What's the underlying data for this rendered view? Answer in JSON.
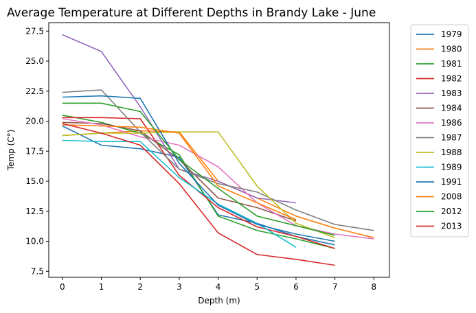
{
  "chart_data": {
    "type": "line",
    "title": "Average Temperature at Different Depths in Brandy Lake - June",
    "xlabel": "Depth (m)",
    "ylabel": "Temp (C°)",
    "xlim": [
      -0.35,
      8.4
    ],
    "ylim": [
      7.0,
      28.2
    ],
    "xticks": [
      0,
      1,
      2,
      3,
      4,
      5,
      6,
      7,
      8
    ],
    "yticks": [
      7.5,
      10.0,
      12.5,
      15.0,
      17.5,
      20.0,
      22.5,
      25.0,
      27.5
    ],
    "ytick_labels": [
      "7.5",
      "10.0",
      "12.5",
      "15.0",
      "17.5",
      "20.0",
      "22.5",
      "25.0",
      "27.5"
    ],
    "grid": false,
    "legend_position": "right-outside",
    "series": [
      {
        "name": "1979",
        "color": "#1f77b4",
        "x": [
          0,
          1,
          2,
          3,
          4,
          5,
          6,
          7
        ],
        "y": [
          19.6,
          18.0,
          17.7,
          17.0,
          12.2,
          11.5,
          10.4,
          9.7
        ]
      },
      {
        "name": "1980",
        "color": "#ff7f0e",
        "x": [
          0,
          1,
          2,
          3,
          4,
          5,
          6,
          7,
          8
        ],
        "y": [
          18.8,
          19.0,
          19.2,
          19.1,
          15.0,
          13.6,
          12.1,
          11.1,
          10.3
        ]
      },
      {
        "name": "1981",
        "color": "#2ca02c",
        "x": [
          0,
          1,
          2,
          3,
          4,
          5,
          6,
          7
        ],
        "y": [
          20.5,
          19.9,
          19.0,
          17.2,
          12.1,
          10.9,
          10.2,
          9.4
        ]
      },
      {
        "name": "1982",
        "color": "#d62728",
        "x": [
          0,
          1,
          2,
          3,
          4,
          5,
          6,
          7
        ],
        "y": [
          20.3,
          20.3,
          20.2,
          15.5,
          12.8,
          11.2,
          10.4,
          9.4
        ]
      },
      {
        "name": "1983",
        "color": "#9467bd",
        "x": [
          0,
          1,
          2,
          3,
          4,
          5,
          6
        ],
        "y": [
          27.2,
          25.8,
          21.2,
          16.0,
          15.0,
          13.6,
          13.2
        ]
      },
      {
        "name": "1984",
        "color": "#8c564b",
        "x": [
          0,
          1,
          2,
          3,
          4,
          5,
          6
        ],
        "y": [
          19.9,
          19.8,
          19.2,
          16.8,
          13.6,
          12.8,
          11.7
        ]
      },
      {
        "name": "1986",
        "color": "#e377c2",
        "x": [
          0,
          1,
          2,
          3,
          4,
          5,
          6,
          7,
          8
        ],
        "y": [
          20.2,
          19.7,
          18.7,
          18.0,
          16.2,
          13.2,
          11.3,
          10.6,
          10.2
        ]
      },
      {
        "name": "1987",
        "color": "#7f7f7f",
        "x": [
          0,
          1,
          2,
          3,
          4,
          5,
          6,
          7,
          8
        ],
        "y": [
          22.4,
          22.6,
          19.1,
          16.0,
          14.8,
          14.1,
          12.6,
          11.4,
          10.9
        ]
      },
      {
        "name": "1988",
        "color": "#bcbd22",
        "x": [
          0,
          1,
          2,
          3,
          4,
          5,
          6,
          7
        ],
        "y": [
          18.8,
          19.0,
          19.0,
          19.1,
          19.1,
          14.6,
          11.5,
          10.3
        ]
      },
      {
        "name": "1989",
        "color": "#17becf",
        "x": [
          0,
          1,
          2,
          3,
          4,
          5,
          6
        ],
        "y": [
          18.4,
          18.3,
          18.3,
          15.3,
          13.1,
          11.5,
          9.5
        ]
      },
      {
        "name": "1991",
        "color": "#1f77b4",
        "x": [
          0,
          1,
          2,
          3,
          4,
          5,
          6,
          7
        ],
        "y": [
          22.0,
          22.1,
          21.9,
          16.5,
          13.0,
          11.4,
          10.6,
          10.0
        ]
      },
      {
        "name": "2008",
        "color": "#ff7f0e",
        "x": [
          0,
          1,
          2,
          3,
          4,
          5,
          6
        ],
        "y": [
          19.7,
          19.6,
          19.5,
          19.0,
          14.6,
          13.2,
          11.8
        ]
      },
      {
        "name": "2012",
        "color": "#2ca02c",
        "x": [
          0,
          1,
          2,
          3,
          4,
          5,
          6,
          7
        ],
        "y": [
          21.5,
          21.5,
          20.8,
          16.8,
          14.4,
          12.1,
          11.3,
          10.5
        ]
      },
      {
        "name": "2013",
        "color": "#d62728",
        "x": [
          0,
          1,
          2,
          3,
          4,
          5,
          6,
          7
        ],
        "y": [
          19.8,
          19.0,
          18.0,
          14.8,
          10.7,
          8.9,
          8.5,
          8.0
        ]
      }
    ]
  }
}
